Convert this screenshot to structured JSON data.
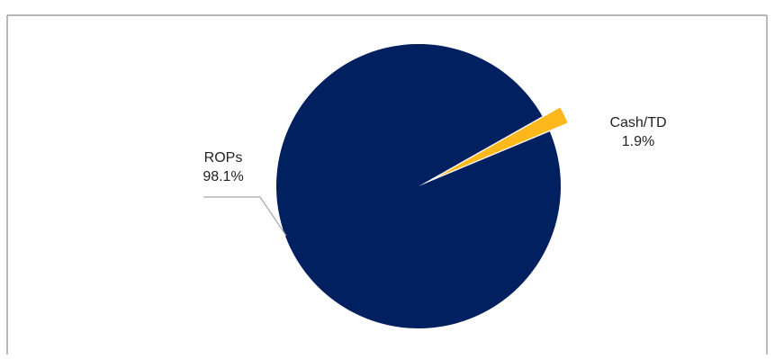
{
  "chart_data": {
    "type": "pie",
    "title": "",
    "slices": [
      {
        "label": "ROPs",
        "value_label": "98.1%",
        "value": 98.1,
        "color": "#002060"
      },
      {
        "label": "Cash/TD",
        "value_label": "1.9%",
        "value": 1.9,
        "color": "#FFB81C"
      }
    ],
    "legend": "none",
    "leader_line_color": "#a6a6a6",
    "border_color": "#8c8c8c"
  }
}
